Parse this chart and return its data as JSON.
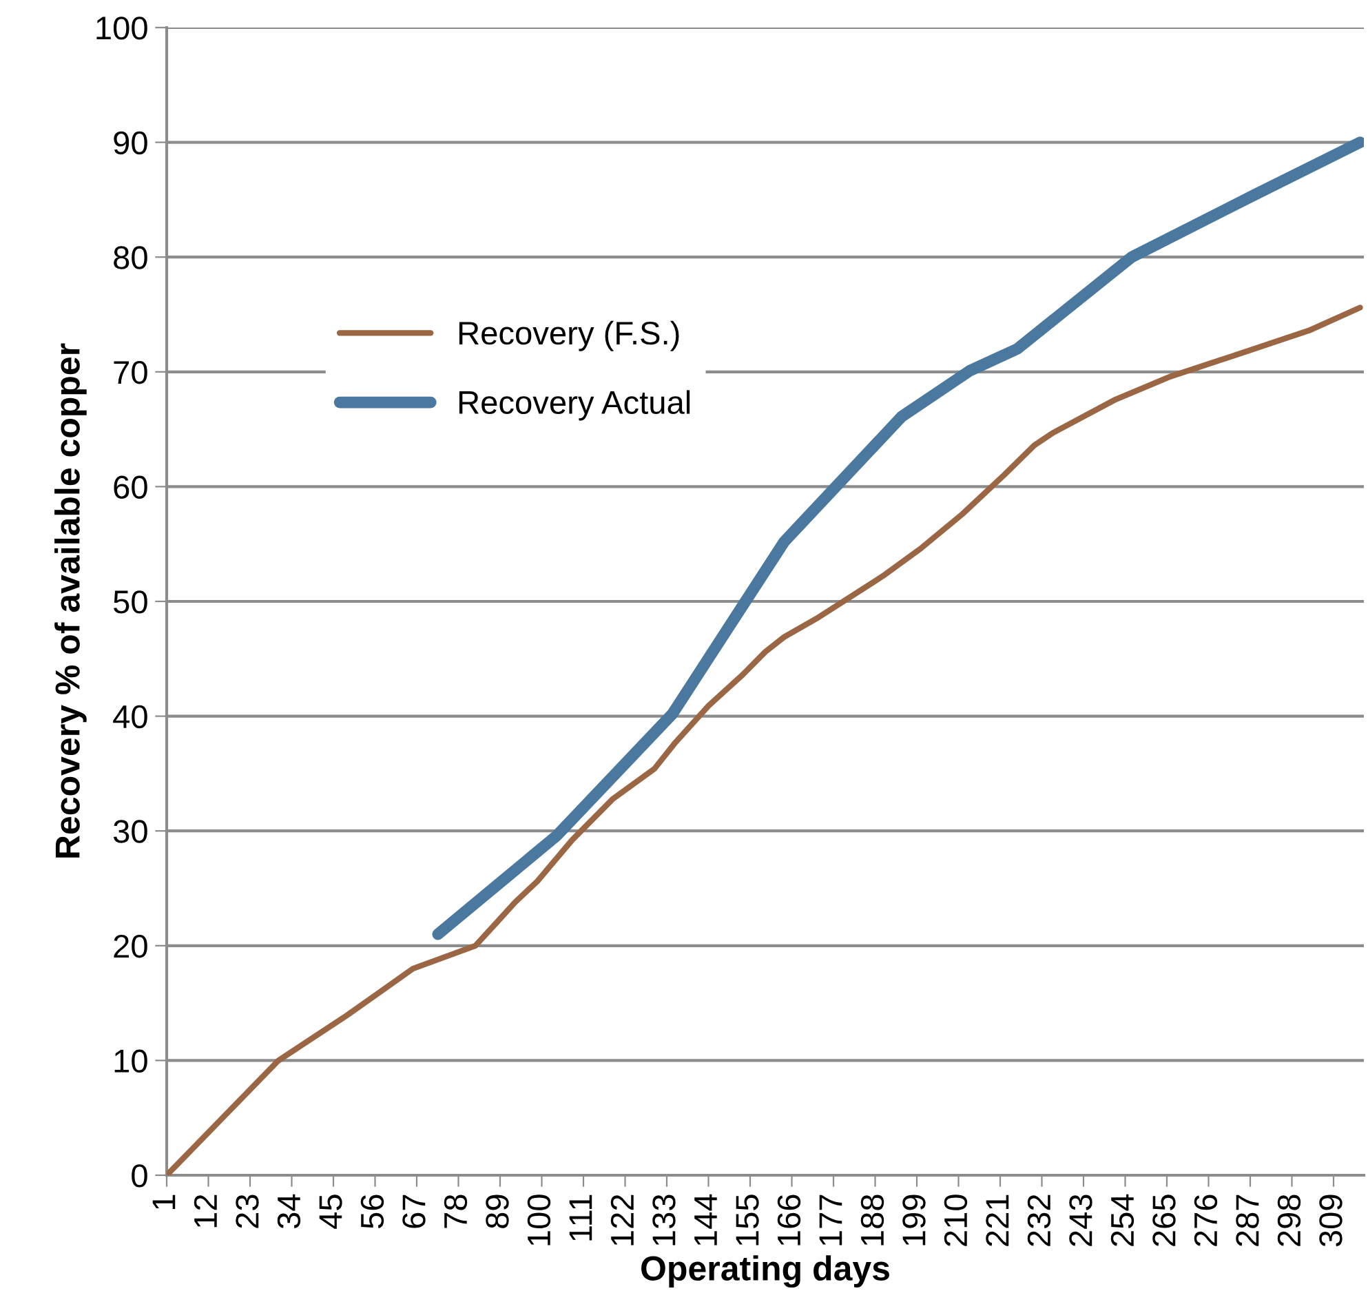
{
  "chart_data": {
    "type": "line",
    "xlabel": "Operating days",
    "ylabel": "Recovery % of available copper",
    "xlim": [
      1,
      317
    ],
    "xticks": [
      1,
      12,
      23,
      34,
      45,
      56,
      67,
      78,
      89,
      100,
      111,
      122,
      133,
      144,
      155,
      166,
      177,
      188,
      199,
      210,
      221,
      232,
      243,
      254,
      265,
      276,
      287,
      298,
      309
    ],
    "ylim": [
      0,
      100
    ],
    "yticks": [
      0,
      10,
      20,
      30,
      40,
      50,
      60,
      70,
      80,
      90,
      100
    ],
    "grid": "y",
    "legend": "top left",
    "marker": "none",
    "line_style": "solid",
    "series": [
      {
        "name": "Recovery (F.S.)",
        "color": "#9a6644",
        "x": [
          1,
          30.5,
          48,
          66,
          82.5,
          88.6,
          93,
          98.8,
          108,
          118.8,
          129.7,
          135,
          144,
          153,
          159,
          164,
          173,
          190,
          200,
          211,
          222,
          230,
          235,
          251.5,
          266,
          277,
          288,
          302.5,
          316
        ],
        "values": [
          0,
          10,
          13.8,
          18,
          20,
          22.2,
          23.8,
          25.6,
          29.2,
          32.8,
          35.4,
          37.6,
          40.9,
          43.6,
          45.6,
          46.9,
          48.6,
          52.2,
          54.6,
          57.6,
          61,
          63.6,
          64.7,
          67.6,
          69.6,
          70.8,
          72,
          73.6,
          75.6
        ]
      },
      {
        "name": "Recovery Actual",
        "color": "#4a789e",
        "x": [
          72.6,
          104,
          134.5,
          164,
          195,
          213,
          225.5,
          255.7,
          288,
          316
        ],
        "values": [
          21,
          29.6,
          40.2,
          55.2,
          66.1,
          70.1,
          72,
          80,
          85.4,
          90
        ]
      }
    ]
  }
}
